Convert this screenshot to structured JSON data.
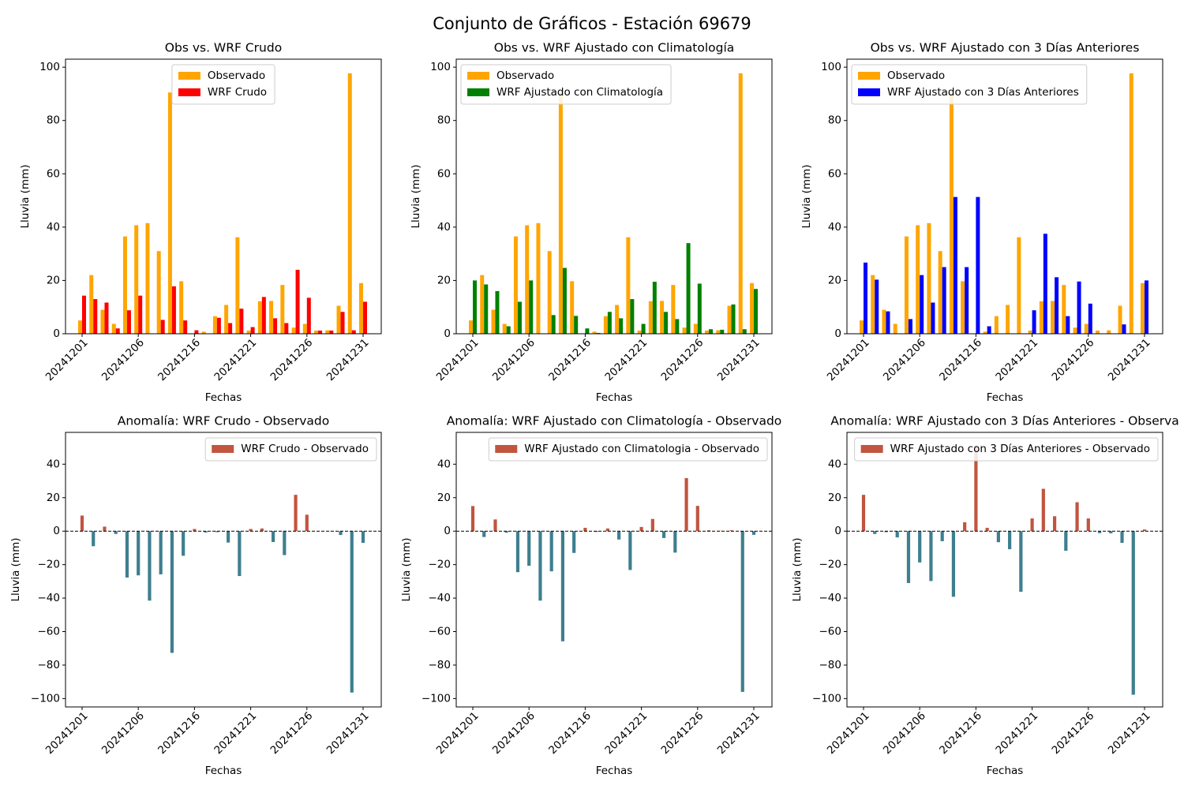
{
  "title": "Conjunto de Gráficos - Estación 69679",
  "chart_data": [
    {
      "type": "bar",
      "title": "Obs vs. WRF Crudo",
      "xlabel": "Fechas",
      "ylabel": "Lluvia (mm)",
      "legend": "upper center",
      "categories": [
        "20241201",
        null,
        null,
        null,
        null,
        "20241206",
        null,
        null,
        null,
        null,
        "20241216",
        null,
        null,
        null,
        null,
        "20241221",
        null,
        null,
        null,
        null,
        "20241226",
        null,
        null,
        null,
        null,
        "20241231"
      ],
      "series": [
        {
          "name": "Observado",
          "color": "#ffa500",
          "values": [
            5,
            22,
            9,
            3.7,
            36.5,
            40.7,
            41.5,
            31,
            90.5,
            19.7,
            0,
            0.8,
            6.6,
            10.8,
            36.2,
            1.2,
            12.2,
            12.3,
            18.3,
            2.3,
            3.7,
            1.2,
            1.3,
            10.5,
            97.7,
            19
          ]
        },
        {
          "name": "WRF Crudo",
          "color": "#ff0000",
          "values": [
            14.3,
            13,
            11.7,
            2,
            8.8,
            14.3,
            0,
            5.2,
            17.8,
            5,
            1.3,
            0,
            6,
            4,
            9.4,
            2.5,
            13.8,
            5.8,
            4,
            24,
            13.5,
            1.2,
            1.2,
            8.2,
            1.3,
            12
          ]
        }
      ],
      "ylim": [
        0,
        103
      ],
      "yticks": [
        0,
        20,
        40,
        60,
        80,
        100
      ]
    },
    {
      "type": "bar",
      "title": "Obs vs. WRF Ajustado con Climatología",
      "xlabel": "Fechas",
      "ylabel": "Lluvia (mm)",
      "legend": "upper left",
      "categories": [
        "20241201",
        null,
        null,
        null,
        null,
        "20241206",
        null,
        null,
        null,
        null,
        "20241216",
        null,
        null,
        null,
        null,
        "20241221",
        null,
        null,
        null,
        null,
        "20241226",
        null,
        null,
        null,
        null,
        "20241231"
      ],
      "series": [
        {
          "name": "Observado",
          "color": "#ffa500",
          "values": [
            5,
            22,
            9,
            3.7,
            36.5,
            40.7,
            41.5,
            31,
            90.5,
            19.7,
            0,
            0.8,
            6.6,
            10.8,
            36.2,
            1.2,
            12.2,
            12.3,
            18.3,
            2.3,
            3.7,
            1.2,
            1.3,
            10.5,
            97.7,
            19
          ]
        },
        {
          "name": "WRF Ajustado con Climatología",
          "color": "#008000",
          "values": [
            20,
            18.5,
            16,
            2.8,
            12,
            20,
            0,
            7,
            24.7,
            6.7,
            2,
            0.3,
            8.2,
            5.8,
            13,
            3.7,
            19.5,
            8.2,
            5.5,
            34,
            18.8,
            1.7,
            1.5,
            11,
            1.7,
            16.8
          ]
        }
      ],
      "ylim": [
        0,
        103
      ],
      "yticks": [
        0,
        20,
        40,
        60,
        80,
        100
      ]
    },
    {
      "type": "bar",
      "title": "Obs vs. WRF Ajustado con 3 Días Anteriores",
      "xlabel": "Fechas",
      "ylabel": "Lluvia (mm)",
      "legend": "upper left",
      "categories": [
        "20241201",
        null,
        null,
        null,
        null,
        "20241206",
        null,
        null,
        null,
        null,
        "20241216",
        null,
        null,
        null,
        null,
        "20241221",
        null,
        null,
        null,
        null,
        "20241226",
        null,
        null,
        null,
        null,
        "20241231"
      ],
      "series": [
        {
          "name": "Observado",
          "color": "#ffa500",
          "values": [
            5,
            22,
            9,
            3.7,
            36.5,
            40.7,
            41.5,
            31,
            90.5,
            19.7,
            0,
            0.8,
            6.6,
            10.8,
            36.2,
            1.2,
            12.2,
            12.3,
            18.3,
            2.3,
            3.7,
            1.2,
            1.3,
            10.5,
            97.7,
            19
          ]
        },
        {
          "name": "WRF Ajustado con 3 Días Anteriores",
          "color": "#0000ff",
          "values": [
            26.7,
            20.3,
            8.4,
            0,
            5.5,
            22,
            11.7,
            25,
            51.3,
            25,
            51.3,
            2.8,
            0,
            0,
            0,
            8.8,
            37.5,
            21.2,
            6.6,
            19.6,
            11.3,
            0,
            0,
            3.5,
            0,
            20
          ]
        }
      ],
      "ylim": [
        0,
        103
      ],
      "yticks": [
        0,
        20,
        40,
        60,
        80,
        100
      ]
    },
    {
      "type": "anomaly",
      "title": "Anomalía: WRF Crudo - Observado",
      "xlabel": "Fechas",
      "ylabel": "Lluvia (mm)",
      "legend": "upper right",
      "zero_line": true,
      "positive_color": "#c1553f",
      "negative_color": "#3e7f8f",
      "categories": [
        "20241201",
        null,
        null,
        null,
        null,
        "20241206",
        null,
        null,
        null,
        null,
        "20241216",
        null,
        null,
        null,
        null,
        "20241221",
        null,
        null,
        null,
        null,
        "20241226",
        null,
        null,
        null,
        null,
        "20241231"
      ],
      "series": [
        {
          "name": "WRF Crudo - Observado",
          "values": [
            9.3,
            -9,
            2.7,
            -1.7,
            -27.7,
            -26.4,
            -41.5,
            -25.8,
            -72.7,
            -14.7,
            1.3,
            -0.8,
            -0.6,
            -6.8,
            -26.8,
            1.3,
            1.6,
            -6.5,
            -14.3,
            21.7,
            9.8,
            0,
            -0.1,
            -2.3,
            -96.4,
            -7
          ]
        }
      ],
      "ylim": [
        -105,
        59
      ],
      "yticks": [
        {
          "value": -100,
          "label": "−100"
        },
        {
          "value": -80,
          "label": "−80"
        },
        {
          "value": -60,
          "label": "−60"
        },
        {
          "value": -40,
          "label": "−40"
        },
        {
          "value": -20,
          "label": "−20"
        },
        0,
        20,
        40
      ]
    },
    {
      "type": "anomaly",
      "title": "Anomalía: WRF Ajustado con Climatología - Observado",
      "xlabel": "Fechas",
      "ylabel": "Lluvia (mm)",
      "legend": "upper right",
      "zero_line": true,
      "positive_color": "#c1553f",
      "negative_color": "#3e7f8f",
      "categories": [
        "20241201",
        null,
        null,
        null,
        null,
        "20241206",
        null,
        null,
        null,
        null,
        "20241216",
        null,
        null,
        null,
        null,
        "20241221",
        null,
        null,
        null,
        null,
        "20241226",
        null,
        null,
        null,
        null,
        "20241231"
      ],
      "series": [
        {
          "name": "WRF Ajustado con Climatologia - Observado",
          "values": [
            15,
            -3.5,
            7,
            -0.9,
            -24.5,
            -20.7,
            -41.5,
            -24,
            -65.8,
            -13,
            2,
            -0.5,
            1.6,
            -5,
            -23.2,
            2.5,
            7.3,
            -4.1,
            -12.8,
            31.7,
            15.1,
            0.5,
            0.2,
            0.5,
            -96,
            -2.2
          ]
        }
      ],
      "ylim": [
        -105,
        59
      ],
      "yticks": [
        {
          "value": -100,
          "label": "−100"
        },
        {
          "value": -80,
          "label": "−80"
        },
        {
          "value": -60,
          "label": "−60"
        },
        {
          "value": -40,
          "label": "−40"
        },
        {
          "value": -20,
          "label": "−20"
        },
        0,
        20,
        40
      ]
    },
    {
      "type": "anomaly",
      "title": "Anomalía: WRF Ajustado con 3 Días Anteriores - Observa",
      "xlabel": "Fechas",
      "ylabel": "Lluvia (mm)",
      "legend": "upper right",
      "zero_line": true,
      "positive_color": "#c1553f",
      "negative_color": "#3e7f8f",
      "categories": [
        "20241201",
        null,
        null,
        null,
        null,
        "20241206",
        null,
        null,
        null,
        null,
        "20241216",
        null,
        null,
        null,
        null,
        "20241221",
        null,
        null,
        null,
        null,
        "20241226",
        null,
        null,
        null,
        null,
        "20241231"
      ],
      "series": [
        {
          "name": "WRF Ajustado con 3 Días Anteriores - Observado",
          "values": [
            21.7,
            -1.7,
            -0.6,
            -3.7,
            -31,
            -18.7,
            -29.8,
            -6,
            -39.2,
            5.3,
            51.3,
            2,
            -6.6,
            -10.8,
            -36.2,
            7.6,
            25.3,
            8.9,
            -11.7,
            17.3,
            7.6,
            -1.2,
            -1.3,
            -7,
            -97.7,
            1
          ]
        }
      ],
      "ylim": [
        -105,
        59
      ],
      "yticks": [
        {
          "value": -100,
          "label": "−100"
        },
        {
          "value": -80,
          "label": "−80"
        },
        {
          "value": -60,
          "label": "−60"
        },
        {
          "value": -40,
          "label": "−40"
        },
        {
          "value": -20,
          "label": "−20"
        },
        0,
        20,
        40
      ]
    }
  ]
}
